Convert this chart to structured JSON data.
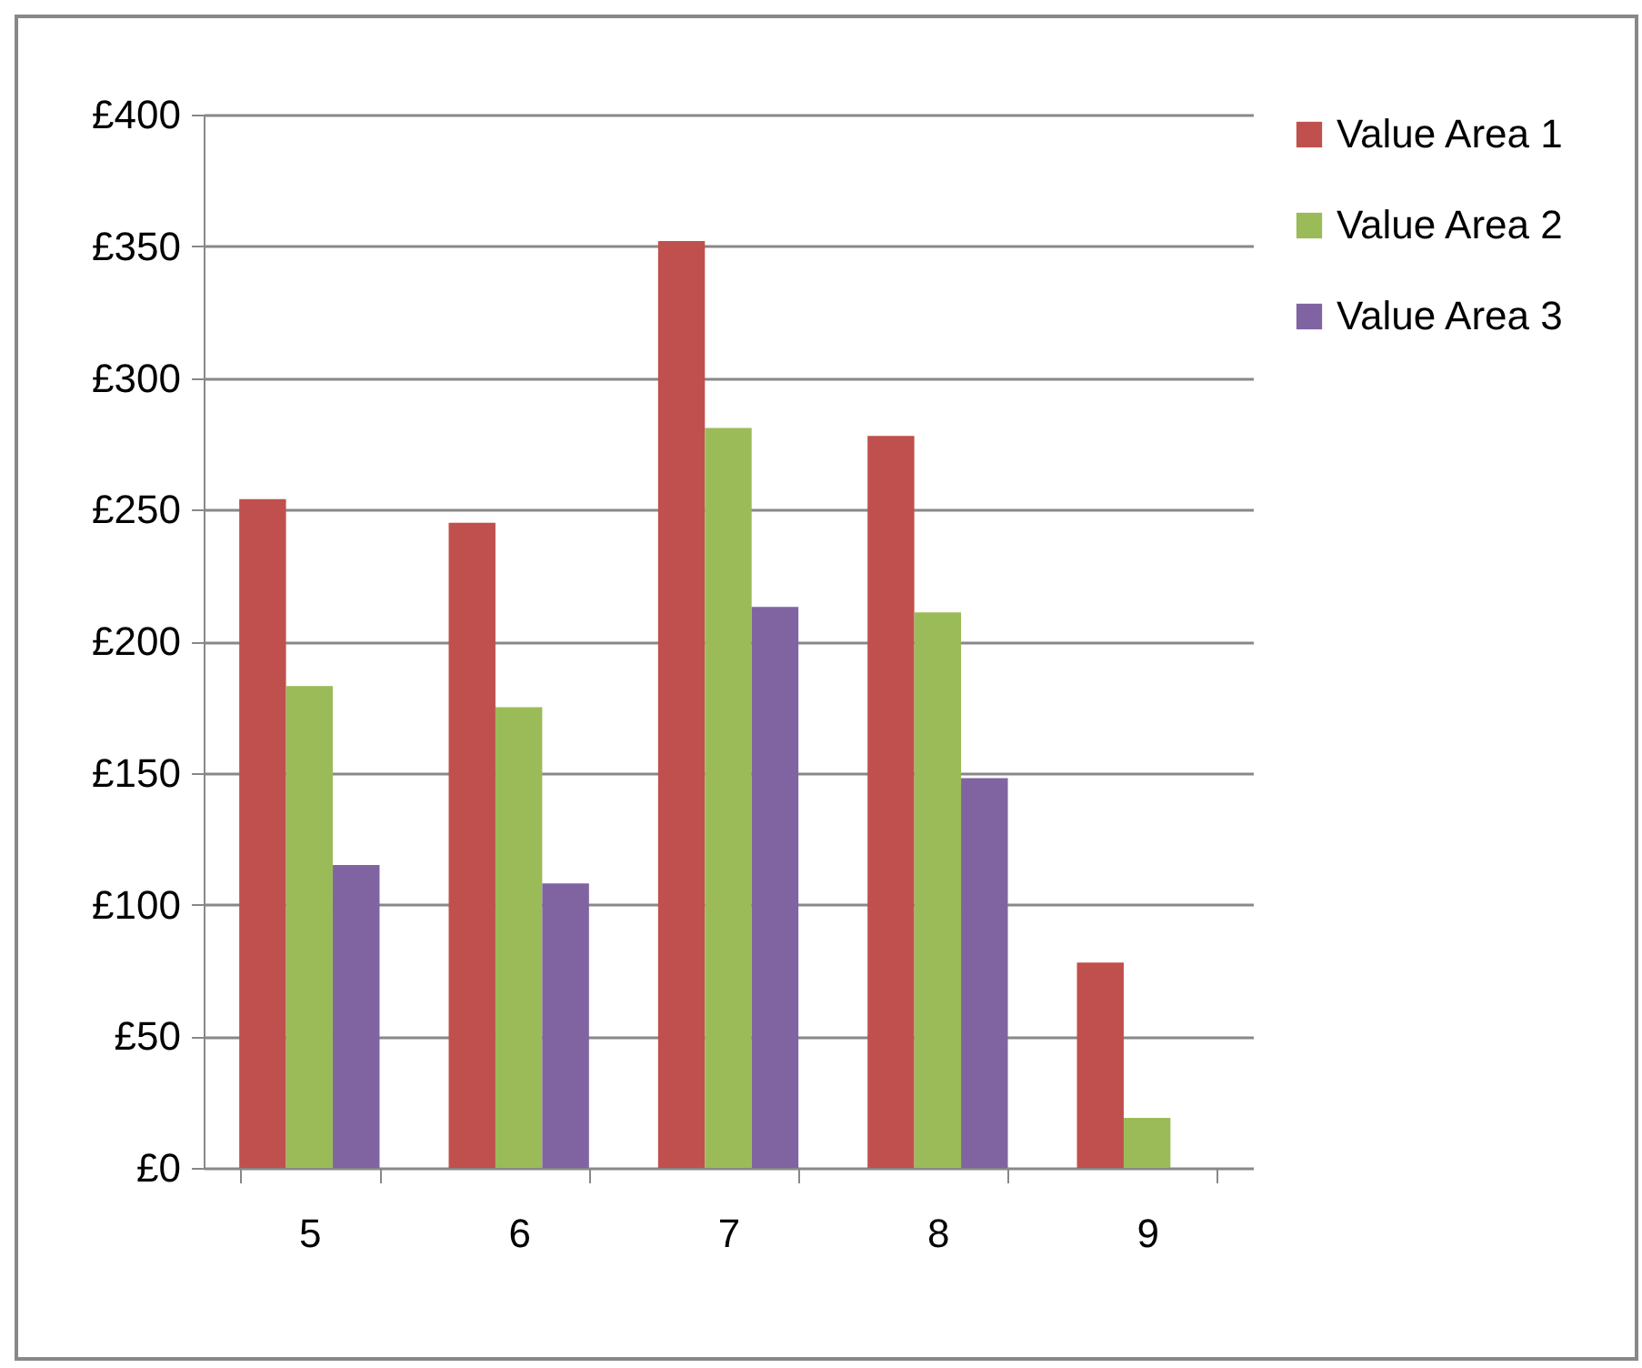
{
  "chart_data": {
    "type": "bar",
    "categories": [
      "5",
      "6",
      "7",
      "8",
      "9"
    ],
    "series": [
      {
        "name": "Value Area 1",
        "color": "#c0504d",
        "values": [
          254,
          245,
          352,
          278,
          78
        ]
      },
      {
        "name": "Value Area 2",
        "color": "#9bbb59",
        "values": [
          183,
          175,
          281,
          211,
          19
        ]
      },
      {
        "name": "Value Area 3",
        "color": "#8064a2",
        "values": [
          115,
          108,
          213,
          148,
          null
        ]
      }
    ],
    "ylim": [
      0,
      400
    ],
    "yticks": [
      {
        "value": 0,
        "label": "£0"
      },
      {
        "value": 50,
        "label": "£50"
      },
      {
        "value": 100,
        "label": "£100"
      },
      {
        "value": 150,
        "label": "£150"
      },
      {
        "value": 200,
        "label": "£200"
      },
      {
        "value": 250,
        "label": "£250"
      },
      {
        "value": 300,
        "label": "£300"
      },
      {
        "value": 350,
        "label": "£350"
      },
      {
        "value": 400,
        "label": "£400"
      }
    ],
    "grid": "y",
    "legend": "right"
  }
}
